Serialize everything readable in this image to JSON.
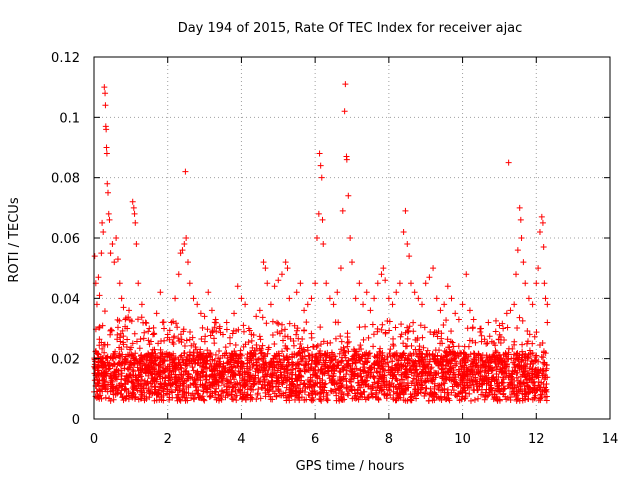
{
  "chart_data": {
    "type": "scatter",
    "title": "Day 194 of 2015, Rate Of TEC Index for receiver ajac",
    "xlabel": "GPS time / hours",
    "ylabel": "ROTI / TECUs",
    "xlim": [
      0,
      14
    ],
    "ylim": [
      0,
      0.12
    ],
    "x_ticks": [
      "0",
      "2",
      "4",
      "6",
      "8",
      "10",
      "12",
      "14"
    ],
    "y_ticks": [
      "0",
      "0.02",
      "0.04",
      "0.06",
      "0.08",
      "0.1",
      "0.12"
    ],
    "grid": true,
    "marker": "plus",
    "color": "#ff0000",
    "series": [
      {
        "points": [
          [
            0.02,
            0.054
          ],
          [
            0.05,
            0.045
          ],
          [
            0.08,
            0.038
          ],
          [
            0.12,
            0.047
          ],
          [
            0.15,
            0.041
          ],
          [
            0.2,
            0.055
          ],
          [
            0.22,
            0.065
          ],
          [
            0.25,
            0.062
          ],
          [
            0.28,
            0.11
          ],
          [
            0.3,
            0.108
          ],
          [
            0.31,
            0.104
          ],
          [
            0.32,
            0.097
          ],
          [
            0.33,
            0.096
          ],
          [
            0.34,
            0.09
          ],
          [
            0.35,
            0.088
          ],
          [
            0.36,
            0.078
          ],
          [
            0.38,
            0.075
          ],
          [
            0.4,
            0.068
          ],
          [
            0.42,
            0.066
          ],
          [
            0.45,
            0.055
          ],
          [
            0.5,
            0.058
          ],
          [
            0.55,
            0.052
          ],
          [
            0.6,
            0.06
          ],
          [
            0.65,
            0.053
          ],
          [
            0.7,
            0.045
          ],
          [
            0.75,
            0.04
          ],
          [
            0.8,
            0.037
          ],
          [
            0.85,
            0.033
          ],
          [
            0.9,
            0.03
          ],
          [
            0.95,
            0.036
          ],
          [
            1.05,
            0.072
          ],
          [
            1.08,
            0.07
          ],
          [
            1.1,
            0.068
          ],
          [
            1.12,
            0.065
          ],
          [
            1.15,
            0.058
          ],
          [
            1.2,
            0.045
          ],
          [
            1.3,
            0.038
          ],
          [
            1.4,
            0.032
          ],
          [
            1.5,
            0.03
          ],
          [
            1.6,
            0.028
          ],
          [
            1.7,
            0.035
          ],
          [
            1.8,
            0.042
          ],
          [
            1.9,
            0.03
          ],
          [
            2.0,
            0.028
          ],
          [
            2.1,
            0.032
          ],
          [
            2.2,
            0.04
          ],
          [
            2.3,
            0.048
          ],
          [
            2.35,
            0.055
          ],
          [
            2.4,
            0.056
          ],
          [
            2.45,
            0.058
          ],
          [
            2.48,
            0.082
          ],
          [
            2.5,
            0.06
          ],
          [
            2.55,
            0.052
          ],
          [
            2.6,
            0.045
          ],
          [
            2.7,
            0.04
          ],
          [
            2.8,
            0.038
          ],
          [
            2.9,
            0.035
          ],
          [
            3.0,
            0.034
          ],
          [
            3.1,
            0.042
          ],
          [
            3.2,
            0.036
          ],
          [
            3.3,
            0.033
          ],
          [
            3.4,
            0.03
          ],
          [
            3.5,
            0.028
          ],
          [
            3.6,
            0.032
          ],
          [
            3.8,
            0.035
          ],
          [
            3.9,
            0.044
          ],
          [
            4.0,
            0.04
          ],
          [
            4.1,
            0.038
          ],
          [
            4.2,
            0.03
          ],
          [
            4.4,
            0.034
          ],
          [
            4.5,
            0.036
          ],
          [
            4.6,
            0.052
          ],
          [
            4.65,
            0.05
          ],
          [
            4.7,
            0.045
          ],
          [
            4.8,
            0.038
          ],
          [
            4.9,
            0.044
          ],
          [
            5.0,
            0.046
          ],
          [
            5.1,
            0.048
          ],
          [
            5.2,
            0.052
          ],
          [
            5.25,
            0.05
          ],
          [
            5.3,
            0.04
          ],
          [
            5.5,
            0.042
          ],
          [
            5.6,
            0.045
          ],
          [
            5.7,
            0.036
          ],
          [
            5.8,
            0.038
          ],
          [
            5.9,
            0.04
          ],
          [
            6.0,
            0.045
          ],
          [
            6.05,
            0.06
          ],
          [
            6.1,
            0.068
          ],
          [
            6.12,
            0.088
          ],
          [
            6.15,
            0.084
          ],
          [
            6.18,
            0.08
          ],
          [
            6.2,
            0.066
          ],
          [
            6.22,
            0.058
          ],
          [
            6.3,
            0.045
          ],
          [
            6.4,
            0.04
          ],
          [
            6.5,
            0.038
          ],
          [
            6.6,
            0.042
          ],
          [
            6.7,
            0.05
          ],
          [
            6.75,
            0.069
          ],
          [
            6.8,
            0.102
          ],
          [
            6.82,
            0.111
          ],
          [
            6.85,
            0.087
          ],
          [
            6.86,
            0.086
          ],
          [
            6.9,
            0.074
          ],
          [
            6.95,
            0.06
          ],
          [
            7.0,
            0.052
          ],
          [
            7.1,
            0.04
          ],
          [
            7.2,
            0.045
          ],
          [
            7.3,
            0.038
          ],
          [
            7.4,
            0.042
          ],
          [
            7.5,
            0.036
          ],
          [
            7.6,
            0.04
          ],
          [
            7.7,
            0.045
          ],
          [
            7.8,
            0.048
          ],
          [
            7.85,
            0.05
          ],
          [
            7.9,
            0.046
          ],
          [
            8.0,
            0.04
          ],
          [
            8.1,
            0.038
          ],
          [
            8.2,
            0.042
          ],
          [
            8.3,
            0.045
          ],
          [
            8.4,
            0.062
          ],
          [
            8.45,
            0.069
          ],
          [
            8.5,
            0.058
          ],
          [
            8.55,
            0.054
          ],
          [
            8.6,
            0.045
          ],
          [
            8.7,
            0.042
          ],
          [
            8.8,
            0.04
          ],
          [
            8.9,
            0.038
          ],
          [
            9.0,
            0.045
          ],
          [
            9.1,
            0.047
          ],
          [
            9.2,
            0.05
          ],
          [
            9.3,
            0.04
          ],
          [
            9.4,
            0.036
          ],
          [
            9.5,
            0.038
          ],
          [
            9.6,
            0.044
          ],
          [
            9.7,
            0.04
          ],
          [
            9.8,
            0.035
          ],
          [
            9.9,
            0.033
          ],
          [
            10.0,
            0.038
          ],
          [
            10.1,
            0.048
          ],
          [
            10.2,
            0.036
          ],
          [
            10.3,
            0.033
          ],
          [
            10.5,
            0.03
          ],
          [
            10.7,
            0.032
          ],
          [
            10.9,
            0.029
          ],
          [
            11.0,
            0.031
          ],
          [
            11.1,
            0.03
          ],
          [
            11.2,
            0.035
          ],
          [
            11.25,
            0.085
          ],
          [
            11.3,
            0.036
          ],
          [
            11.4,
            0.038
          ],
          [
            11.45,
            0.048
          ],
          [
            11.5,
            0.056
          ],
          [
            11.55,
            0.07
          ],
          [
            11.58,
            0.066
          ],
          [
            11.6,
            0.06
          ],
          [
            11.65,
            0.052
          ],
          [
            11.7,
            0.045
          ],
          [
            11.8,
            0.04
          ],
          [
            11.9,
            0.038
          ],
          [
            12.0,
            0.045
          ],
          [
            12.05,
            0.05
          ],
          [
            12.1,
            0.062
          ],
          [
            12.15,
            0.067
          ],
          [
            12.18,
            0.065
          ],
          [
            12.2,
            0.057
          ],
          [
            12.22,
            0.045
          ],
          [
            12.25,
            0.04
          ],
          [
            12.3,
            0.038
          ]
        ]
      }
    ]
  }
}
